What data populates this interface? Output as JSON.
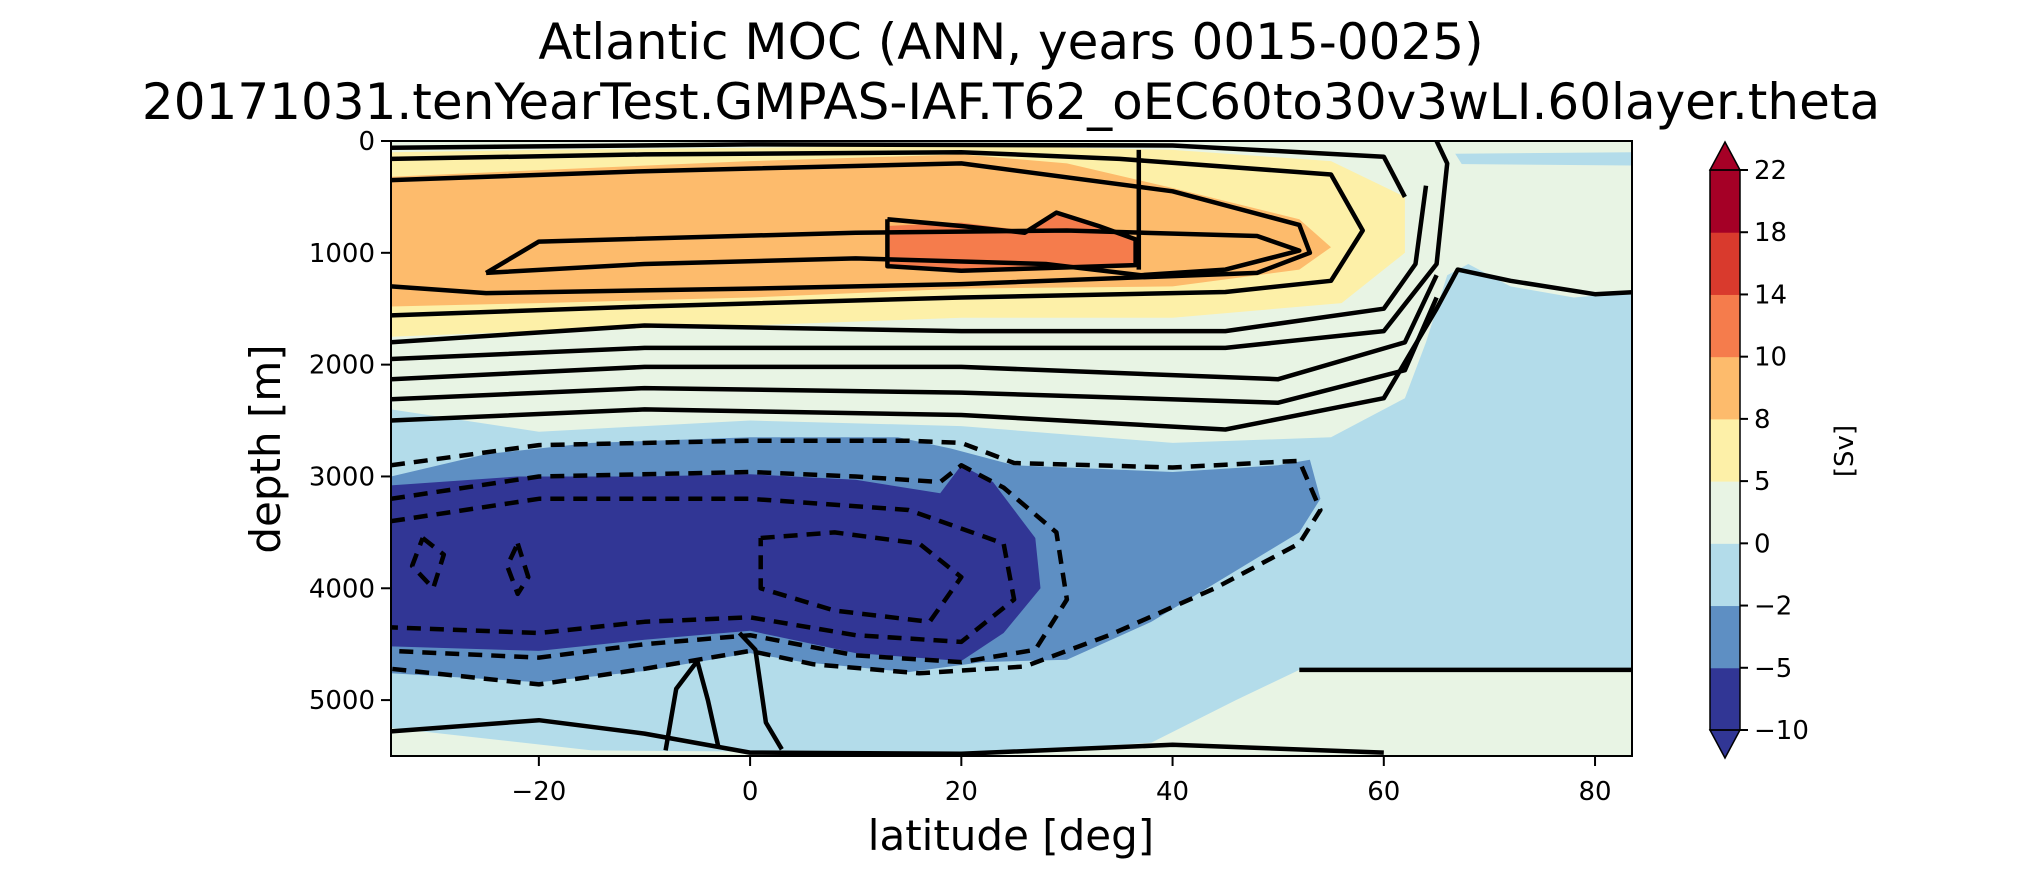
{
  "chart_data": {
    "type": "heatmap",
    "title": "Atlantic MOC (ANN, years 0015-0025)",
    "subtitle": "20171031.tenYearTest.GMPAS-IAF.T62_oEC60to30v3wLI.60layer.theta",
    "xlabel": "latitude [deg]",
    "ylabel": "depth [m]",
    "xlim": [
      -34,
      83.5
    ],
    "ylim": [
      5500,
      0
    ],
    "x_ticks": [
      -20,
      0,
      20,
      40,
      60,
      80
    ],
    "x_tick_labels": [
      "−20",
      "0",
      "20",
      "40",
      "60",
      "80"
    ],
    "y_ticks": [
      0,
      1000,
      2000,
      3000,
      4000,
      5000
    ],
    "y_tick_labels": [
      "0",
      "1000",
      "2000",
      "3000",
      "4000",
      "5000"
    ],
    "colorbar": {
      "label": "[Sv]",
      "levels": [
        -10,
        -5,
        -2,
        0,
        5,
        8,
        10,
        14,
        18,
        22
      ],
      "tick_labels": [
        "−10",
        "−5",
        "−2",
        "0",
        "5",
        "8",
        "10",
        "14",
        "18",
        "22"
      ],
      "colors": [
        "#313695",
        "#5e8fc3",
        "#b3dcea",
        "#e8f4e4",
        "#fdf0a8",
        "#fdbb6c",
        "#f57c4c",
        "#d93a2d",
        "#a50026"
      ],
      "extend": "both"
    },
    "contour_style": {
      "line_color": "#000000",
      "negative_linestyle": "dashed",
      "positive_linestyle": "solid"
    },
    "features": {
      "upper_cell_core": {
        "lat": 25,
        "depth": 950,
        "value": 11
      },
      "lower_cell_core": {
        "lat": 0,
        "depth": 3900,
        "value": -12
      }
    }
  }
}
